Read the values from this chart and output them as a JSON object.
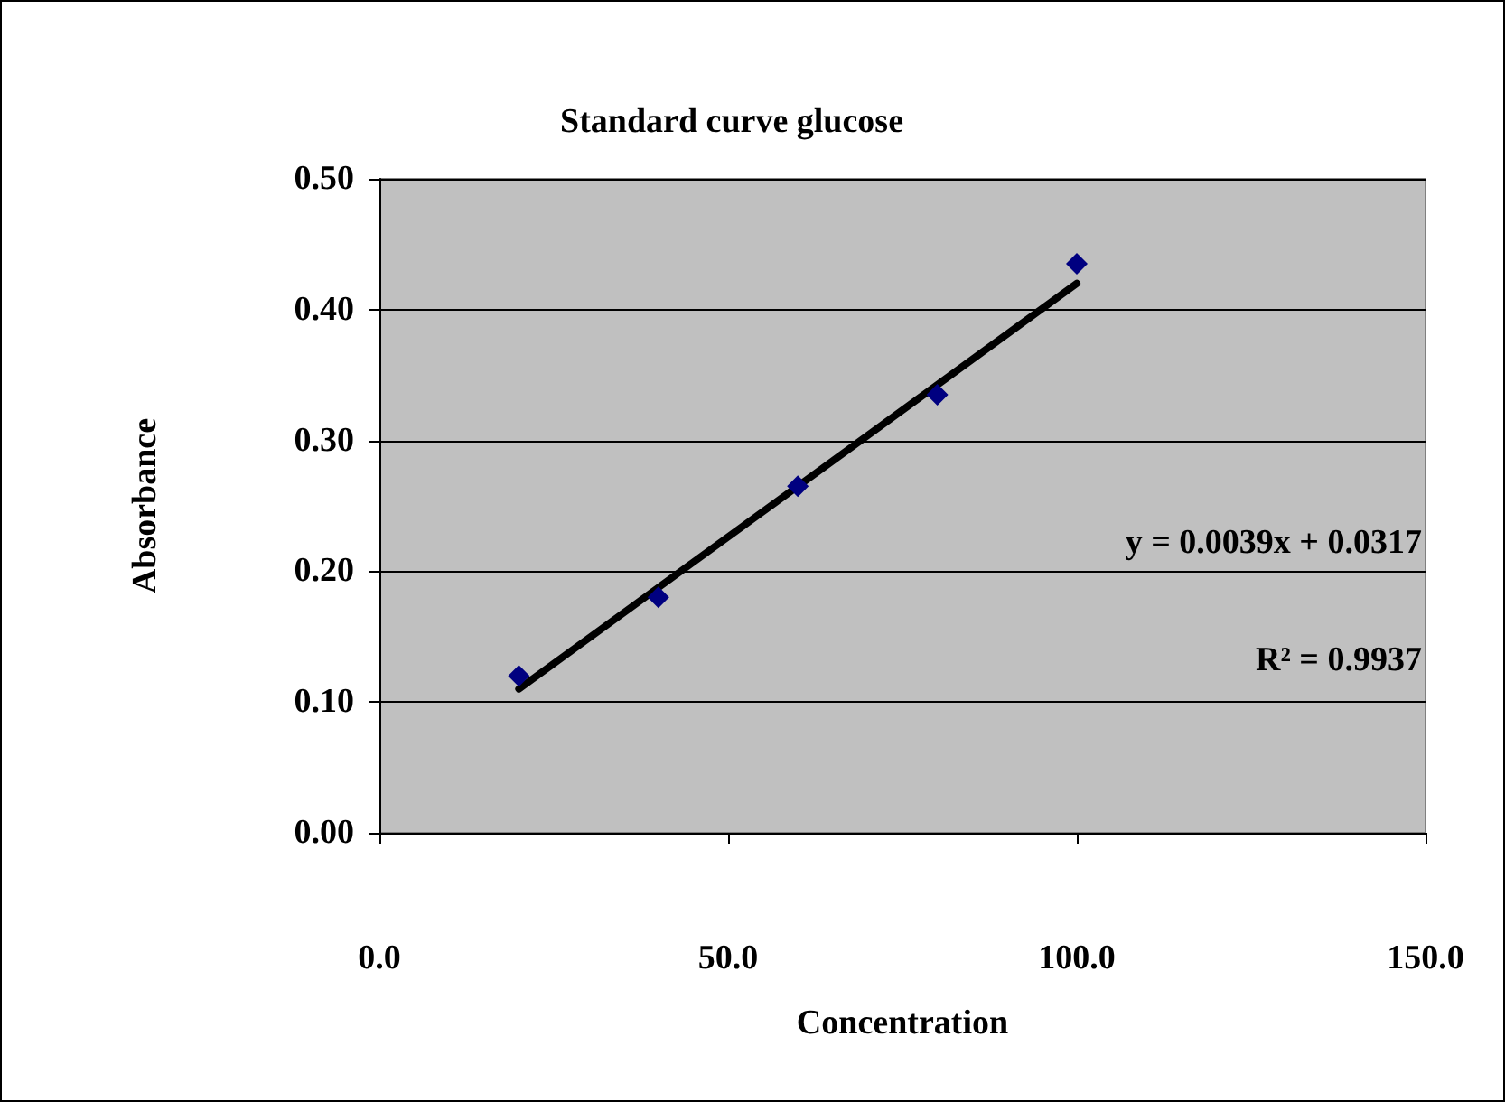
{
  "chart_data": {
    "type": "scatter",
    "title": "Standard curve glucose",
    "xlabel": "Concentration",
    "ylabel": "Absorbance",
    "x": [
      20,
      40,
      60,
      80,
      100
    ],
    "series": [
      {
        "type": "scatter",
        "color": "#000080",
        "marker": "diamond",
        "values": [
          0.12,
          0.18,
          0.265,
          0.335,
          0.435
        ]
      },
      {
        "type": "line",
        "color": "#000000",
        "marker": "none",
        "x": [
          20,
          100
        ],
        "values": [
          0.11,
          0.42
        ]
      }
    ],
    "xlim": [
      0,
      150
    ],
    "xticks": [
      {
        "value": 0,
        "label": "0.0"
      },
      {
        "value": 50,
        "label": "50.0"
      },
      {
        "value": 100,
        "label": "100.0"
      },
      {
        "value": 150,
        "label": "150.0"
      }
    ],
    "ylim": [
      0,
      0.5
    ],
    "yticks": [
      {
        "value": 0,
        "label": "0.00"
      },
      {
        "value": 0.1,
        "label": "0.10"
      },
      {
        "value": 0.2,
        "label": "0.20"
      },
      {
        "value": 0.3,
        "label": "0.30"
      },
      {
        "value": 0.4,
        "label": "0.40"
      },
      {
        "value": 0.5,
        "label": "0.50"
      }
    ],
    "grid": "y",
    "annotations": [
      "y = 0.0039x + 0.0317",
      "R² = 0.9937"
    ]
  }
}
